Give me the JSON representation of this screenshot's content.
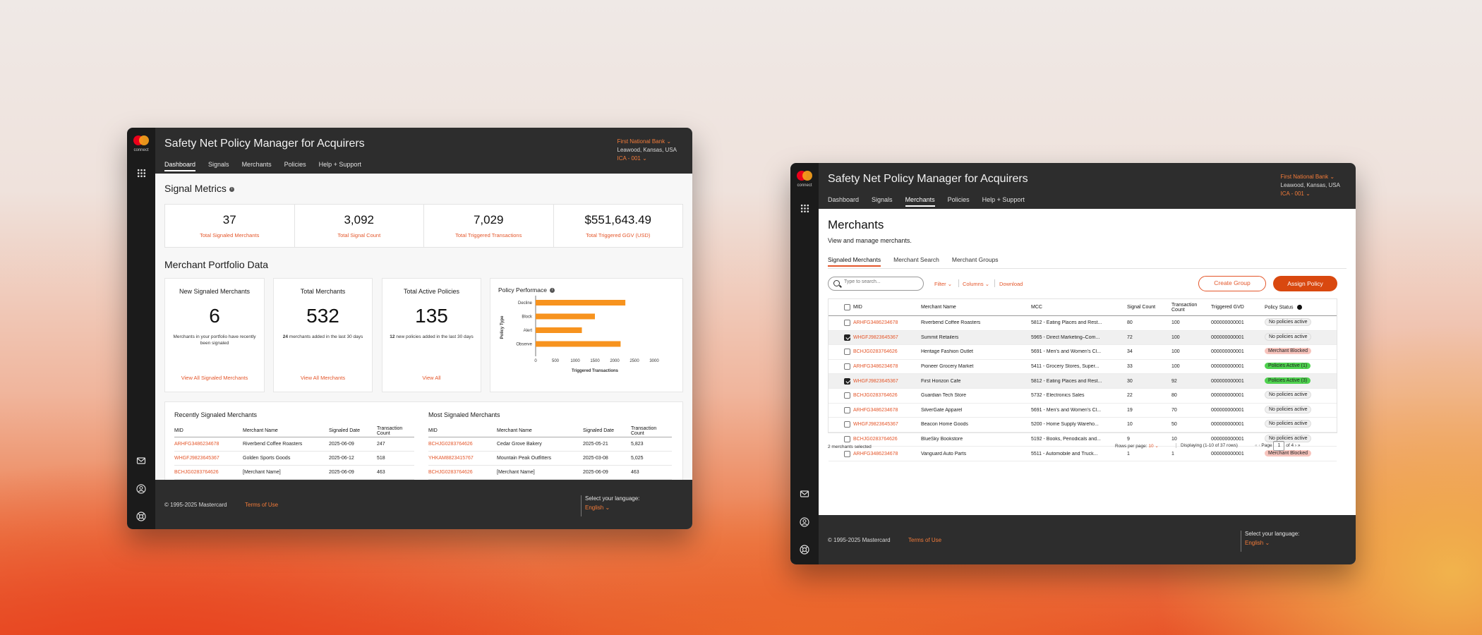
{
  "app": {
    "title": "Safety Net Policy Manager for Acquirers",
    "logo_text": "connect",
    "bank": "First National Bank",
    "location": "Leawood, Kansas, USA",
    "ica": "ICA - 001",
    "nav": [
      "Dashboard",
      "Signals",
      "Merchants",
      "Policies",
      "Help + Support"
    ],
    "footer": {
      "copyright": "© 1995-2025 Mastercard",
      "terms": "Terms of Use",
      "lang_label": "Select your language:",
      "lang_value": "English"
    }
  },
  "dashboard": {
    "signal_metrics_title": "Signal Metrics",
    "metrics": [
      {
        "value": "37",
        "label": "Total Signaled Merchants"
      },
      {
        "value": "3,092",
        "label": "Total Signal Count"
      },
      {
        "value": "7,029",
        "label": "Total Triggered Transactions"
      },
      {
        "value": "$551,643.49",
        "label": "Total Triggered GGV (USD)"
      }
    ],
    "portfolio_title": "Merchant Portfolio Data",
    "cards": [
      {
        "title": "New Signaled Merchants",
        "value": "6",
        "sub": "Merchants in your portfolio have recently been signaled",
        "link": "View All Signaled Merchants"
      },
      {
        "title": "Total Merchants",
        "value": "532",
        "sub_bold": "24",
        "sub": "merchants added in the last 30 days",
        "link": "View All Merchants"
      },
      {
        "title": "Total Active Policies",
        "value": "135",
        "sub_bold": "12",
        "sub": "new policies added in the last 30 days",
        "link": "View All"
      }
    ],
    "policy_chart_title": "Policy Performace",
    "recent_title": "Recently Signaled Merchants",
    "most_title": "Most Signaled Merchants",
    "table_headers": [
      "MID",
      "Merchant Name",
      "Signaled Date",
      "Transaction Count"
    ],
    "recent_rows": [
      [
        "ARHFG3486234678",
        "Riverbend Coffee Roasters",
        "2025-06-09",
        "247"
      ],
      [
        "WHGFJ9823645367",
        "Golden Sports Goods",
        "2025-06-12",
        "518"
      ],
      [
        "BCHJG0283764626",
        "[Merchant Name]",
        "2025-06-09",
        "463"
      ]
    ],
    "most_rows": [
      [
        "BCHJG0283764626",
        "Cedar Grove Bakery",
        "2025-05-21",
        "5,823"
      ],
      [
        "YHKAM8823415767",
        "Mountain Peak Outfitters",
        "2025-03-08",
        "5,025"
      ],
      [
        "BCHJG0283764626",
        "[Merchant Name]",
        "2025-06-09",
        "463"
      ]
    ]
  },
  "chart_data": {
    "type": "bar",
    "orientation": "horizontal",
    "title": "Policy Performace",
    "categories": [
      "Decline",
      "Block",
      "Alert",
      "Observe"
    ],
    "values": [
      2270,
      1500,
      1170,
      2150
    ],
    "xlabel": "Triggered Transactions",
    "ylabel": "Policy Type",
    "xticks": [
      "0",
      "500",
      "1000",
      "1500",
      "2000",
      "2500",
      "3000"
    ],
    "xlim": [
      0,
      3000
    ],
    "color": "#f7931e"
  },
  "merchants": {
    "title": "Merchants",
    "subtitle": "View and manage merchants.",
    "tabs": [
      "Signaled Merchants",
      "Merchant Search",
      "Merchant Groups"
    ],
    "search_placeholder": "Type to search...",
    "filter": "Filter",
    "columns": "Columns",
    "download": "Download",
    "create_group": "Create Group",
    "assign_policy": "Assign Policy",
    "headers": [
      "MID",
      "Merchant Name",
      "MCC",
      "Signal Count",
      "Transaction Count",
      "Triggered GVD",
      "Policy Status"
    ],
    "rows": [
      {
        "checked": false,
        "mid": "ARHFG3486234678",
        "name": "Riverbend Coffee Roasters",
        "mcc": "5812 - Eating Places and Rest...",
        "signals": "80",
        "tx": "100",
        "gvd": "000000000001",
        "status": "No policies active",
        "kind": "none"
      },
      {
        "checked": true,
        "mid": "WHGFJ9823645367",
        "name": "Summit Retailers",
        "mcc": "5965 - Direct Marketing–Com...",
        "signals": "72",
        "tx": "100",
        "gvd": "000000000001",
        "status": "No policies active",
        "kind": "none"
      },
      {
        "checked": false,
        "mid": "BCHJG0283764626",
        "name": "Heritage Fashion Outlet",
        "mcc": "5691 - Men's and Women's Cl...",
        "signals": "34",
        "tx": "100",
        "gvd": "000000000001",
        "status": "Merchant Blocked",
        "kind": "block"
      },
      {
        "checked": false,
        "mid": "ARHFG3486234678",
        "name": "Pioneer Grocery Market",
        "mcc": "5411 - Grocery Stores, Super...",
        "signals": "33",
        "tx": "100",
        "gvd": "000000000001",
        "status": "Policies Active (1)",
        "kind": "active"
      },
      {
        "checked": true,
        "mid": "WHGFJ9823645367",
        "name": "First Horizon Cafe",
        "mcc": "5812 - Eating Places and Rest...",
        "signals": "30",
        "tx": "92",
        "gvd": "000000000001",
        "status": "Policies Active (3)",
        "kind": "active"
      },
      {
        "checked": false,
        "mid": "BCHJG0283764626",
        "name": "Guardian Tech Store",
        "mcc": "5732 - Electronics Sales",
        "signals": "22",
        "tx": "80",
        "gvd": "000000000001",
        "status": "No policies active",
        "kind": "none"
      },
      {
        "checked": false,
        "mid": "ARHFG3486234678",
        "name": "SilverGate Apparel",
        "mcc": "5691 - Men's and Women's Cl...",
        "signals": "19",
        "tx": "70",
        "gvd": "000000000001",
        "status": "No policies active",
        "kind": "none"
      },
      {
        "checked": false,
        "mid": "WHGFJ9823645367",
        "name": "Beacon Home Goods",
        "mcc": "5200 - Home Supply Wareho...",
        "signals": "10",
        "tx": "50",
        "gvd": "000000000001",
        "status": "No policies active",
        "kind": "none"
      },
      {
        "checked": false,
        "mid": "BCHJG0283764626",
        "name": "BlueSky Bookstore",
        "mcc": "5192 - Books, Periodicals and...",
        "signals": "9",
        "tx": "10",
        "gvd": "000000000001",
        "status": "No policies active",
        "kind": "none"
      },
      {
        "checked": false,
        "mid": "ARHFG3486234678",
        "name": "Vanguard Auto Parts",
        "mcc": "5511 - Automobile and Truck...",
        "signals": "1",
        "tx": "1",
        "gvd": "000000000001",
        "status": "Merchant Blocked",
        "kind": "block"
      }
    ],
    "selected_text": "2 merchants selected",
    "rows_per_page_label": "Rows per page:",
    "rows_per_page": "10",
    "displaying": "Displaying (1-10 of 37 rows)",
    "page_label": "Page",
    "page": "1",
    "of_pages": "of 4"
  }
}
